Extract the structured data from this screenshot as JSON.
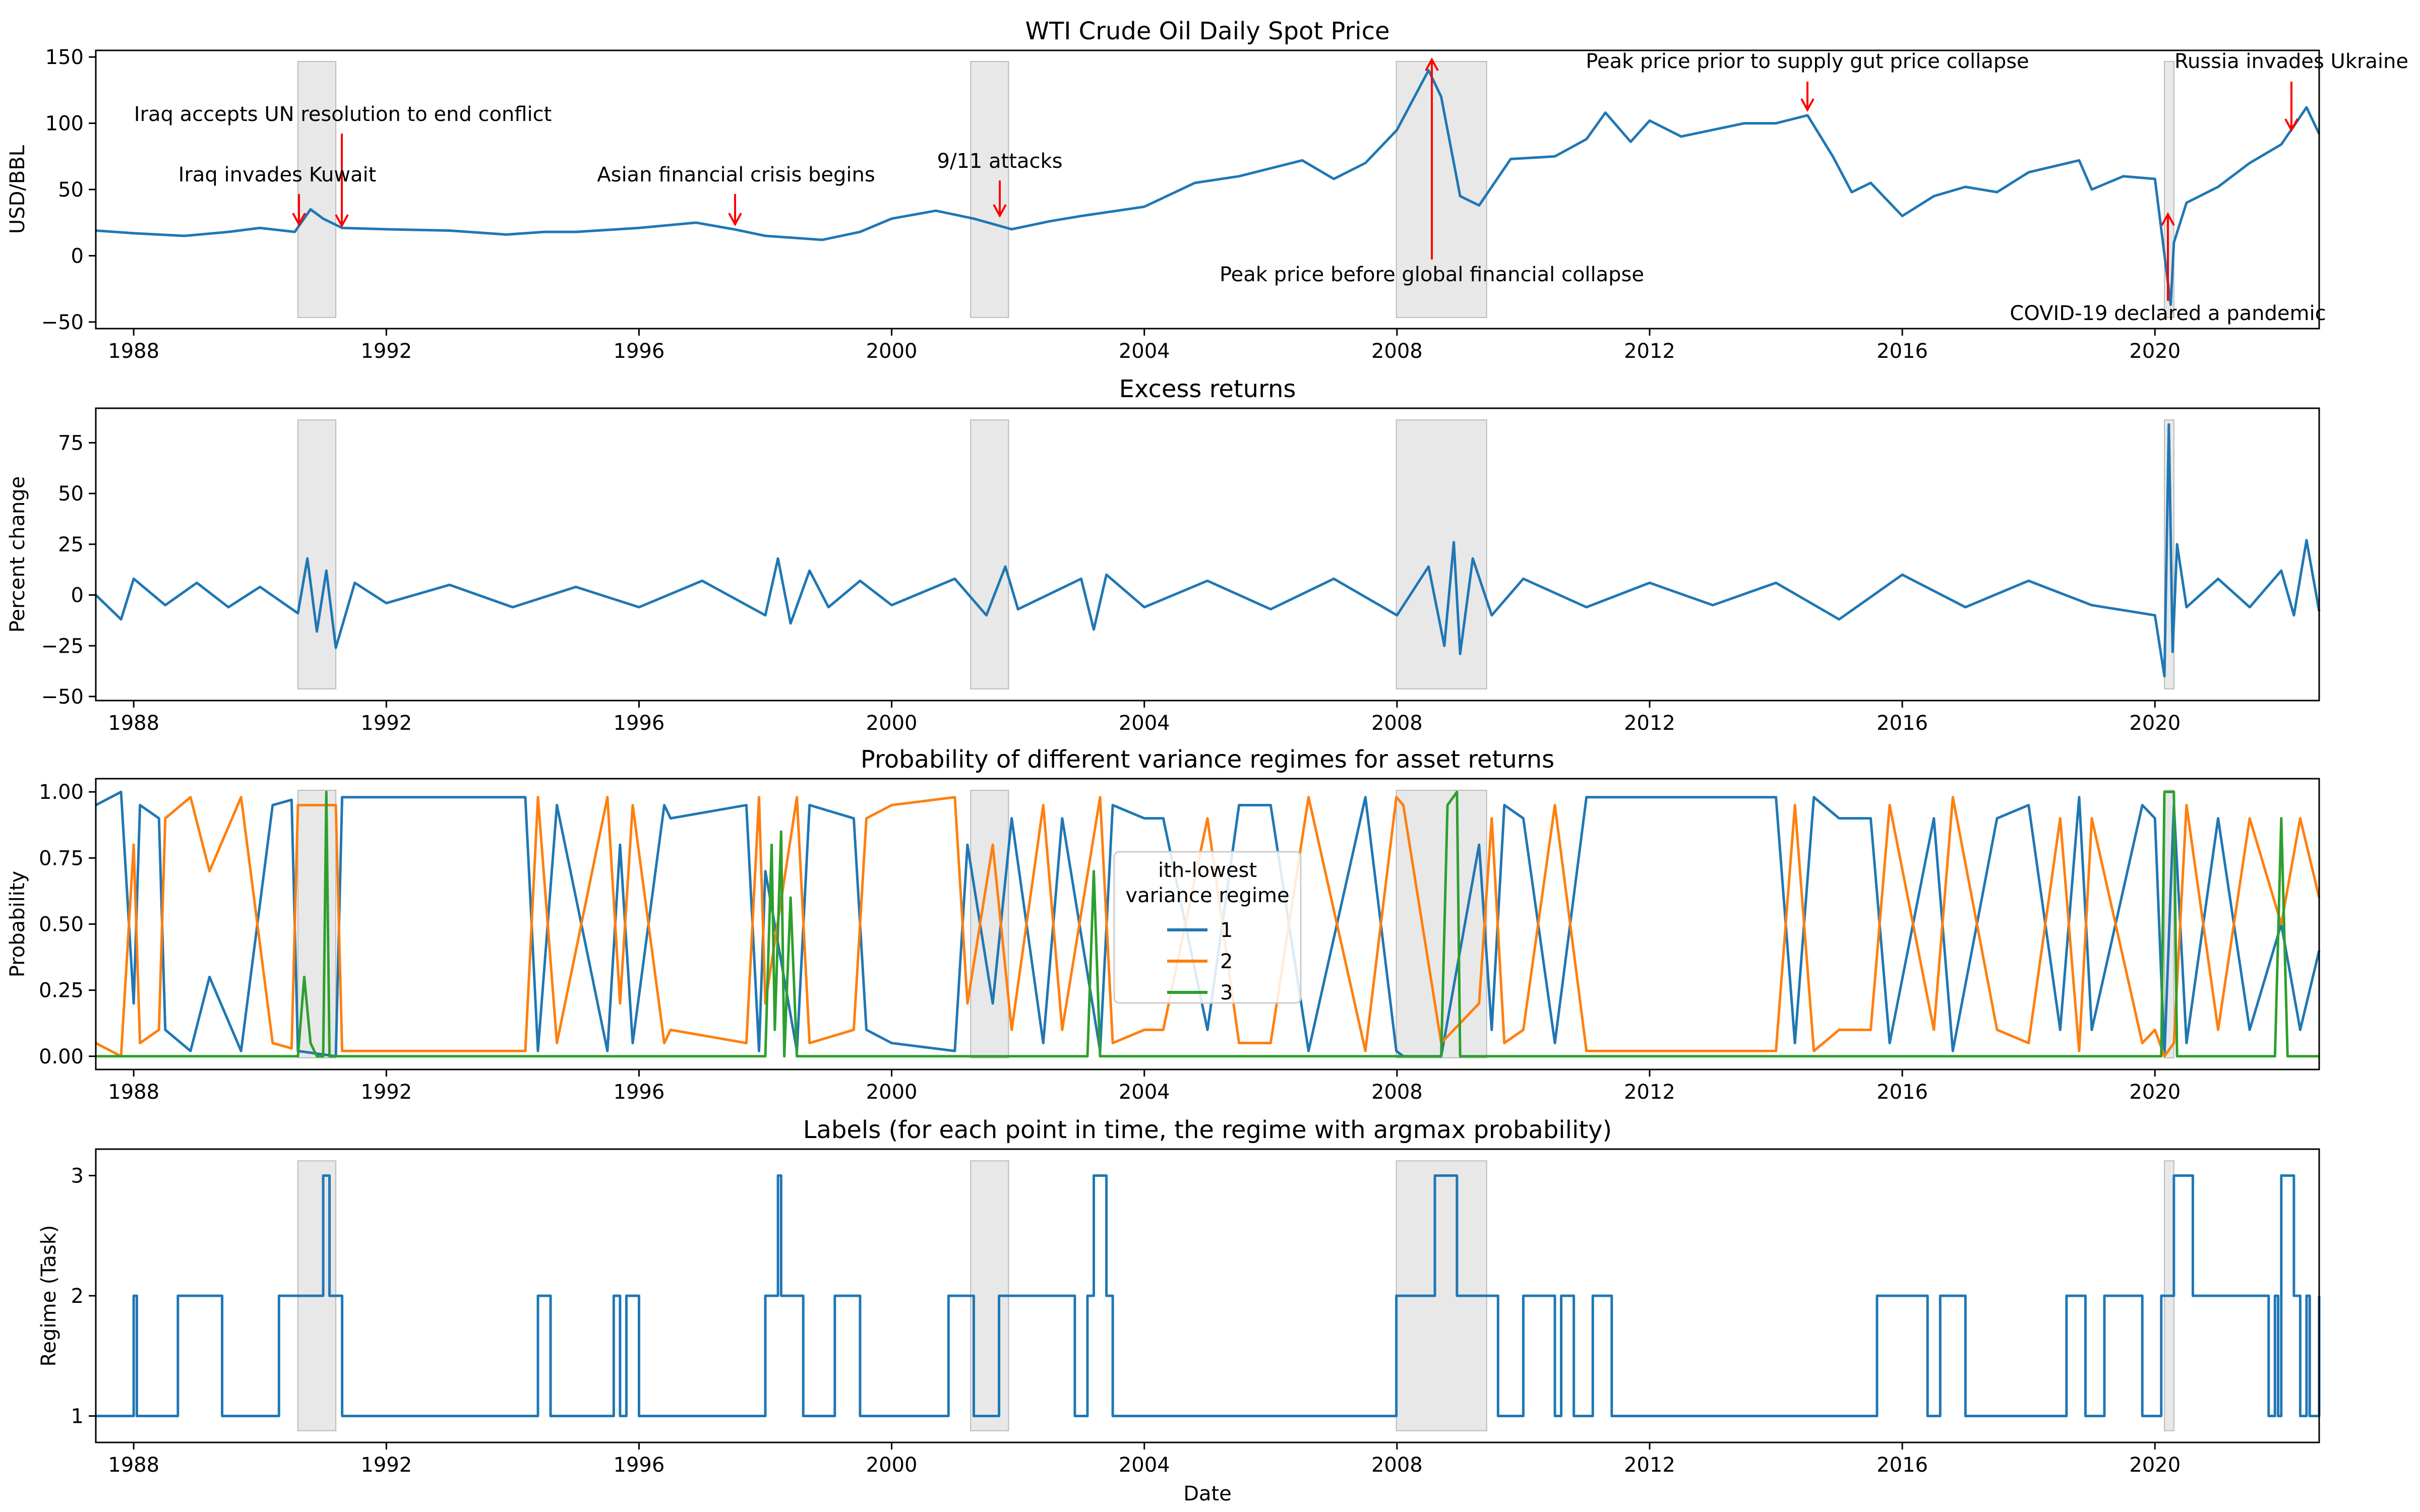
{
  "chart_data": [
    {
      "type": "line",
      "title": "WTI Crude Oil Daily Spot Price",
      "xlabel": "",
      "ylabel": "USD/BBL",
      "xlim": [
        1987.4,
        2022.6
      ],
      "ylim": [
        -55,
        155
      ],
      "x_ticks": [
        "1988",
        "1992",
        "1996",
        "2000",
        "2004",
        "2008",
        "2012",
        "2016",
        "2020"
      ],
      "y_ticks": [
        "−50",
        "0",
        "50",
        "100",
        "150"
      ],
      "y_tick_values": [
        -50,
        0,
        50,
        100,
        150
      ],
      "shaded_periods": [
        [
          1990.6,
          1991.2
        ],
        [
          2001.25,
          2001.85
        ],
        [
          2007.99,
          2009.42
        ],
        [
          2020.15,
          2020.3
        ]
      ],
      "series": [
        {
          "color": "#1f77b4",
          "x": [
            1987.4,
            1988.0,
            1988.8,
            1989.5,
            1990.0,
            1990.55,
            1990.8,
            1991.0,
            1991.3,
            1992.0,
            1993.0,
            1993.9,
            1994.5,
            1995.0,
            1996.0,
            1996.9,
            1997.5,
            1998.0,
            1998.9,
            1999.5,
            2000.0,
            2000.7,
            2001.3,
            2001.9,
            2002.5,
            2003.0,
            2004.0,
            2004.8,
            2005.5,
            2006.5,
            2007.0,
            2007.5,
            2008.0,
            2008.5,
            2008.7,
            2009.0,
            2009.3,
            2009.8,
            2010.5,
            2011.0,
            2011.3,
            2011.7,
            2012.0,
            2012.5,
            2013.0,
            2013.5,
            2014.0,
            2014.5,
            2014.9,
            2015.2,
            2015.5,
            2016.0,
            2016.5,
            2017.0,
            2017.5,
            2018.0,
            2018.8,
            2019.0,
            2019.5,
            2020.0,
            2020.25,
            2020.3,
            2020.5,
            2021.0,
            2021.5,
            2022.0,
            2022.4,
            2022.6
          ],
          "y": [
            19,
            17,
            15,
            18,
            21,
            18,
            35,
            28,
            21,
            20,
            19,
            16,
            18,
            18,
            21,
            25,
            20,
            15,
            12,
            18,
            28,
            34,
            28,
            20,
            26,
            30,
            37,
            55,
            60,
            72,
            58,
            70,
            95,
            140,
            120,
            45,
            38,
            73,
            75,
            88,
            108,
            86,
            102,
            90,
            95,
            100,
            100,
            106,
            75,
            48,
            55,
            30,
            45,
            52,
            48,
            63,
            72,
            50,
            60,
            58,
            -37,
            10,
            40,
            52,
            70,
            84,
            112,
            92
          ]
        }
      ],
      "annotations": [
        {
          "text": "Iraq accepts UN resolution to end conflict",
          "x": 1991.2,
          "y": 20
        },
        {
          "text": "Iraq invades Kuwait",
          "x": 1990.55,
          "y": 20
        },
        {
          "text": "Asian financial crisis begins",
          "x": 1997.5,
          "y": 20
        },
        {
          "text": "9/11 attacks",
          "x": 2001.7,
          "y": 25
        },
        {
          "text": "Peak price before global financial collapse",
          "x": 2008.5,
          "y": 145
        },
        {
          "text": "Peak price prior to supply gut price collapse",
          "x": 2014.5,
          "y": 108
        },
        {
          "text": "COVID-19 declared a pandemic",
          "x": 2020.2,
          "y": 30
        },
        {
          "text": "Russia invades Ukraine",
          "x": 2022.0,
          "y": 92
        }
      ]
    },
    {
      "type": "line",
      "title": "Excess returns",
      "xlabel": "",
      "ylabel": "Percent change",
      "xlim": [
        1987.4,
        2022.6
      ],
      "ylim": [
        -52,
        92
      ],
      "x_ticks": [
        "1988",
        "1992",
        "1996",
        "2000",
        "2004",
        "2008",
        "2012",
        "2016",
        "2020"
      ],
      "y_ticks": [
        "−50",
        "−25",
        "0",
        "25",
        "50",
        "75"
      ],
      "y_tick_values": [
        -50,
        -25,
        0,
        25,
        50,
        75
      ],
      "shaded_periods": [
        [
          1990.6,
          1991.2
        ],
        [
          2001.25,
          2001.85
        ],
        [
          2007.99,
          2009.42
        ],
        [
          2020.15,
          2020.3
        ]
      ],
      "series": [
        {
          "color": "#1f77b4",
          "x": [
            1987.4,
            1987.8,
            1988.0,
            1988.5,
            1989.0,
            1989.5,
            1990.0,
            1990.6,
            1990.75,
            1990.9,
            1991.05,
            1991.2,
            1991.5,
            1992.0,
            1993.0,
            1994.0,
            1995.0,
            1996.0,
            1997.0,
            1998.0,
            1998.2,
            1998.4,
            1998.7,
            1999.0,
            1999.5,
            2000.0,
            2001.0,
            2001.5,
            2001.8,
            2002.0,
            2003.0,
            2003.2,
            2003.4,
            2004.0,
            2005.0,
            2006.0,
            2007.0,
            2008.0,
            2008.5,
            2008.75,
            2008.9,
            2009.0,
            2009.2,
            2009.5,
            2010.0,
            2011.0,
            2012.0,
            2013.0,
            2014.0,
            2015.0,
            2016.0,
            2017.0,
            2018.0,
            2019.0,
            2020.0,
            2020.15,
            2020.22,
            2020.28,
            2020.35,
            2020.5,
            2021.0,
            2021.5,
            2022.0,
            2022.2,
            2022.4,
            2022.6
          ],
          "y": [
            0,
            -12,
            8,
            -5,
            6,
            -6,
            4,
            -9,
            18,
            -18,
            12,
            -26,
            6,
            -4,
            5,
            -6,
            4,
            -6,
            7,
            -10,
            18,
            -14,
            12,
            -6,
            7,
            -5,
            8,
            -10,
            14,
            -7,
            8,
            -17,
            10,
            -6,
            7,
            -7,
            8,
            -10,
            14,
            -25,
            26,
            -29,
            18,
            -10,
            8,
            -6,
            6,
            -5,
            6,
            -12,
            10,
            -6,
            7,
            -5,
            -10,
            -40,
            84,
            -28,
            25,
            -6,
            8,
            -6,
            12,
            -10,
            27,
            -8
          ]
        }
      ]
    },
    {
      "type": "line",
      "title": "Probability of different variance regimes for asset returns",
      "xlabel": "",
      "ylabel": "Probability",
      "xlim": [
        1987.4,
        2022.6
      ],
      "ylim": [
        -0.05,
        1.05
      ],
      "x_ticks": [
        "1988",
        "1992",
        "1996",
        "2000",
        "2004",
        "2008",
        "2012",
        "2016",
        "2020"
      ],
      "y_ticks": [
        "0.00",
        "0.25",
        "0.50",
        "0.75",
        "1.00"
      ],
      "y_tick_values": [
        0,
        0.25,
        0.5,
        0.75,
        1.0
      ],
      "shaded_periods": [
        [
          1990.6,
          1991.2
        ],
        [
          2001.25,
          2001.85
        ],
        [
          2007.99,
          2009.42
        ],
        [
          2020.15,
          2020.3
        ]
      ],
      "legend": {
        "title": "ith-lowest\nvariance regime",
        "placement": "center"
      },
      "series": [
        {
          "name": "1",
          "color": "#1f77b4",
          "x": [
            1987.4,
            1987.8,
            1988.0,
            1988.1,
            1988.4,
            1988.5,
            1988.9,
            1989.2,
            1989.7,
            1990.2,
            1990.5,
            1990.6,
            1991.2,
            1991.3,
            1994.2,
            1994.4,
            1994.7,
            1995.5,
            1995.7,
            1995.9,
            1996.4,
            1996.5,
            1997.7,
            1997.9,
            1998.0,
            1998.5,
            1998.7,
            1999.4,
            1999.6,
            2000.0,
            2001.0,
            2001.2,
            2001.6,
            2001.9,
            2002.4,
            2002.7,
            2003.3,
            2003.5,
            2004.0,
            2004.3,
            2005.0,
            2005.5,
            2006.0,
            2006.6,
            2007.5,
            2007.99,
            2008.1,
            2008.7,
            2009.3,
            2009.5,
            2009.7,
            2010.0,
            2010.5,
            2011.0,
            2011.5,
            2011.7,
            2012.0,
            2013.0,
            2014.0,
            2014.3,
            2014.6,
            2015.0,
            2015.5,
            2015.8,
            2016.5,
            2016.8,
            2017.5,
            2018.0,
            2018.5,
            2018.8,
            2019.0,
            2019.8,
            2020.0,
            2020.15,
            2020.3,
            2020.5,
            2021.0,
            2021.5,
            2022.0,
            2022.3,
            2022.6
          ],
          "y": [
            0.95,
            1.0,
            0.2,
            0.95,
            0.9,
            0.1,
            0.02,
            0.3,
            0.02,
            0.95,
            0.97,
            0.02,
            0.0,
            0.98,
            0.98,
            0.02,
            0.95,
            0.02,
            0.8,
            0.05,
            0.95,
            0.9,
            0.95,
            0.02,
            0.7,
            0.02,
            0.95,
            0.9,
            0.1,
            0.05,
            0.02,
            0.8,
            0.2,
            0.9,
            0.05,
            0.9,
            0.02,
            0.95,
            0.9,
            0.9,
            0.1,
            0.95,
            0.95,
            0.02,
            0.98,
            0.02,
            0.0,
            0.0,
            0.8,
            0.1,
            0.95,
            0.9,
            0.05,
            0.98,
            0.98,
            0.98,
            0.98,
            0.98,
            0.98,
            0.05,
            0.98,
            0.9,
            0.9,
            0.05,
            0.9,
            0.02,
            0.9,
            0.95,
            0.1,
            0.98,
            0.1,
            0.95,
            0.9,
            0.0,
            0.95,
            0.05,
            0.9,
            0.1,
            0.5,
            0.1,
            0.4
          ]
        },
        {
          "name": "2",
          "color": "#ff7f0e",
          "x": [
            1987.4,
            1987.8,
            1988.0,
            1988.1,
            1988.4,
            1988.5,
            1988.9,
            1989.2,
            1989.7,
            1990.2,
            1990.5,
            1990.6,
            1991.2,
            1991.3,
            1994.2,
            1994.4,
            1994.7,
            1995.5,
            1995.7,
            1995.9,
            1996.4,
            1996.5,
            1997.7,
            1997.9,
            1998.0,
            1998.5,
            1998.7,
            1999.4,
            1999.6,
            2000.0,
            2001.0,
            2001.2,
            2001.6,
            2001.9,
            2002.4,
            2002.7,
            2003.3,
            2003.5,
            2004.0,
            2004.3,
            2005.0,
            2005.5,
            2006.0,
            2006.6,
            2007.5,
            2007.99,
            2008.1,
            2008.7,
            2009.3,
            2009.5,
            2009.7,
            2010.0,
            2010.5,
            2011.0,
            2011.5,
            2011.7,
            2012.0,
            2013.0,
            2014.0,
            2014.3,
            2014.6,
            2015.0,
            2015.5,
            2015.8,
            2016.5,
            2016.8,
            2017.5,
            2018.0,
            2018.5,
            2018.8,
            2019.0,
            2019.8,
            2020.0,
            2020.15,
            2020.3,
            2020.5,
            2021.0,
            2021.5,
            2022.0,
            2022.3,
            2022.6
          ],
          "y": [
            0.05,
            0.0,
            0.8,
            0.05,
            0.1,
            0.9,
            0.98,
            0.7,
            0.98,
            0.05,
            0.03,
            0.95,
            0.95,
            0.02,
            0.02,
            0.98,
            0.05,
            0.98,
            0.2,
            0.95,
            0.05,
            0.1,
            0.05,
            0.98,
            0.2,
            0.98,
            0.05,
            0.1,
            0.9,
            0.95,
            0.98,
            0.2,
            0.8,
            0.1,
            0.95,
            0.1,
            0.98,
            0.05,
            0.1,
            0.1,
            0.9,
            0.05,
            0.05,
            0.98,
            0.02,
            0.98,
            0.95,
            0.05,
            0.2,
            0.9,
            0.05,
            0.1,
            0.95,
            0.02,
            0.02,
            0.02,
            0.02,
            0.02,
            0.02,
            0.95,
            0.02,
            0.1,
            0.1,
            0.95,
            0.1,
            0.98,
            0.1,
            0.05,
            0.9,
            0.02,
            0.9,
            0.05,
            0.1,
            0.0,
            0.05,
            0.95,
            0.1,
            0.9,
            0.5,
            0.9,
            0.6
          ]
        },
        {
          "name": "3",
          "color": "#2ca02c",
          "x": [
            1987.4,
            1990.6,
            1990.7,
            1990.8,
            1990.9,
            1991.0,
            1991.05,
            1991.1,
            1991.2,
            1998.0,
            1998.1,
            1998.15,
            1998.25,
            1998.3,
            1998.4,
            1998.5,
            2003.1,
            2003.2,
            2003.3,
            2008.7,
            2008.8,
            2008.95,
            2009.0,
            2020.1,
            2020.15,
            2020.3,
            2020.35,
            2021.9,
            2022.0,
            2022.1,
            2022.6
          ],
          "y": [
            0.0,
            0.0,
            0.3,
            0.05,
            0.0,
            0.0,
            1.0,
            0.0,
            0.0,
            0.0,
            0.8,
            0.1,
            0.85,
            0.0,
            0.6,
            0.0,
            0.0,
            0.7,
            0.0,
            0.0,
            0.95,
            1.0,
            0.0,
            0.0,
            1.0,
            1.0,
            0.0,
            0.0,
            0.9,
            0.0,
            0.0
          ]
        }
      ]
    },
    {
      "type": "line",
      "title": "Labels (for each point in time, the regime with argmax probability)",
      "xlabel": "Date",
      "ylabel": "Regime (Task)",
      "xlim": [
        1987.4,
        2022.6
      ],
      "ylim": [
        0.78,
        3.22
      ],
      "x_ticks": [
        "1988",
        "1992",
        "1996",
        "2000",
        "2004",
        "2008",
        "2012",
        "2016",
        "2020"
      ],
      "y_ticks": [
        "1",
        "2",
        "3"
      ],
      "y_tick_values": [
        1,
        2,
        3
      ],
      "shaded_periods": [
        [
          1990.6,
          1991.2
        ],
        [
          2001.25,
          2001.85
        ],
        [
          2007.99,
          2009.42
        ],
        [
          2020.15,
          2020.3
        ]
      ],
      "step": true,
      "series": [
        {
          "color": "#1f77b4",
          "x": [
            1987.4,
            1987.95,
            1988.0,
            1988.05,
            1988.7,
            1989.4,
            1990.3,
            1990.9,
            1991.0,
            1991.1,
            1991.3,
            1994.4,
            1994.6,
            1995.6,
            1995.7,
            1995.8,
            1996.0,
            1996.4,
            1998.0,
            1998.2,
            1998.25,
            1998.4,
            1998.6,
            1999.1,
            1999.5,
            2000.9,
            2001.3,
            2001.7,
            2002.9,
            2003.1,
            2003.2,
            2003.4,
            2003.5,
            2007.99,
            2008.6,
            2008.95,
            2009.6,
            2010.0,
            2010.5,
            2010.6,
            2010.8,
            2011.1,
            2011.4,
            2014.8,
            2015.6,
            2016.4,
            2016.6,
            2017.0,
            2018.4,
            2018.6,
            2018.9,
            2019.2,
            2019.8,
            2020.1,
            2020.3,
            2020.6,
            2021.8,
            2021.9,
            2021.95,
            2022.0,
            2022.2,
            2022.3,
            2022.4,
            2022.45,
            2022.6
          ],
          "y": [
            1,
            1,
            2,
            1,
            2,
            1,
            2,
            2,
            3,
            2,
            1,
            2,
            1,
            2,
            1,
            2,
            1,
            1,
            2,
            3,
            2,
            2,
            1,
            2,
            1,
            2,
            1,
            2,
            1,
            2,
            3,
            2,
            1,
            2,
            3,
            2,
            1,
            2,
            1,
            2,
            1,
            2,
            1,
            1,
            2,
            1,
            2,
            1,
            1,
            2,
            1,
            2,
            1,
            2,
            3,
            2,
            1,
            2,
            1,
            3,
            2,
            1,
            2,
            1,
            2
          ]
        }
      ]
    }
  ]
}
